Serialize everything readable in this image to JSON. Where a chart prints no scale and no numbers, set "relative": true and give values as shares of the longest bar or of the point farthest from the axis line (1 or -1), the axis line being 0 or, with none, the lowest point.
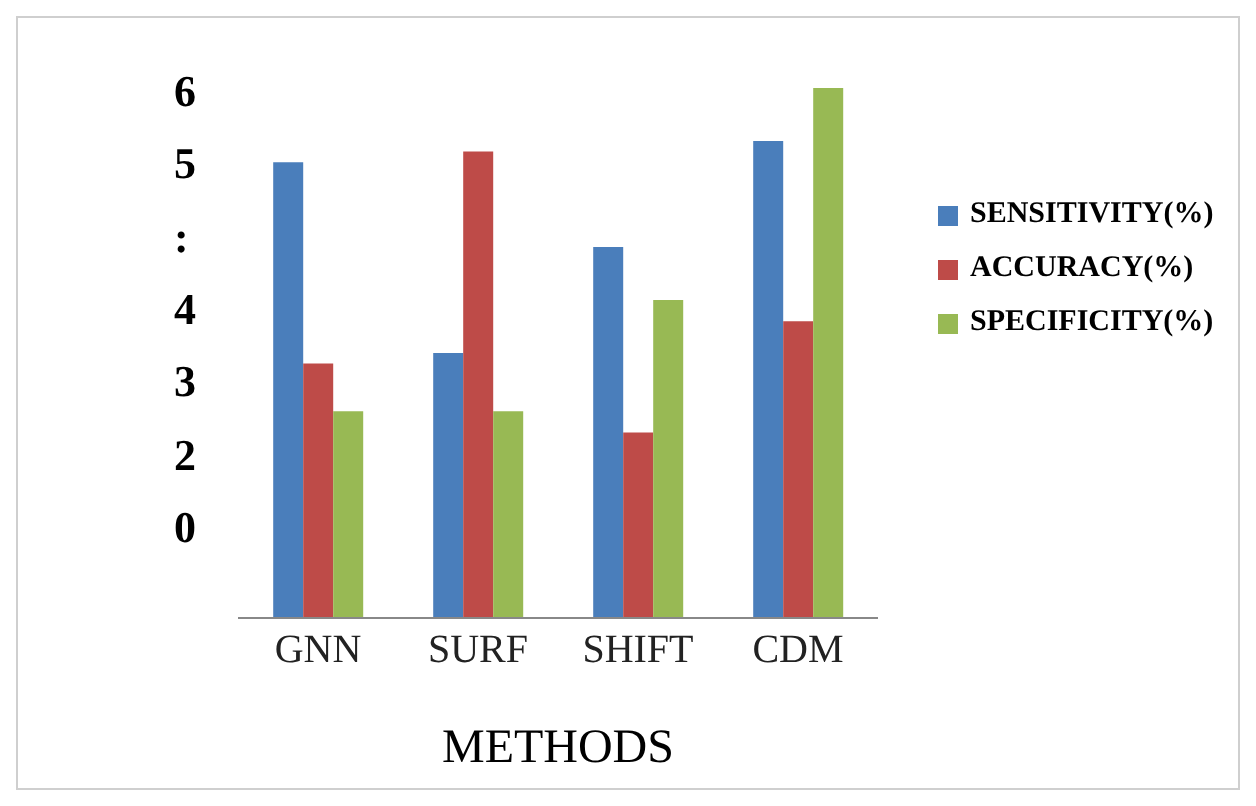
{
  "chart_data": {
    "type": "bar",
    "xlabel": "METHODS",
    "categories": [
      "GNN",
      "SURF",
      "SHIFT",
      "CDM"
    ],
    "relative": true,
    "legend": "right",
    "series": [
      {
        "name": "SENSITIVITY(%)",
        "color": "#4a7ebb",
        "values": [
          0.86,
          0.5,
          0.7,
          0.9
        ]
      },
      {
        "name": "ACCURACY(%)",
        "color": "#be4b48",
        "values": [
          0.48,
          0.88,
          0.35,
          0.56
        ]
      },
      {
        "name": "SPECIFICITY(%)",
        "color": "#98b954",
        "values": [
          0.39,
          0.39,
          0.6,
          1
        ]
      }
    ],
    "annotations": [
      "6",
      "5",
      ":",
      "4",
      "3",
      "2",
      "0"
    ]
  }
}
